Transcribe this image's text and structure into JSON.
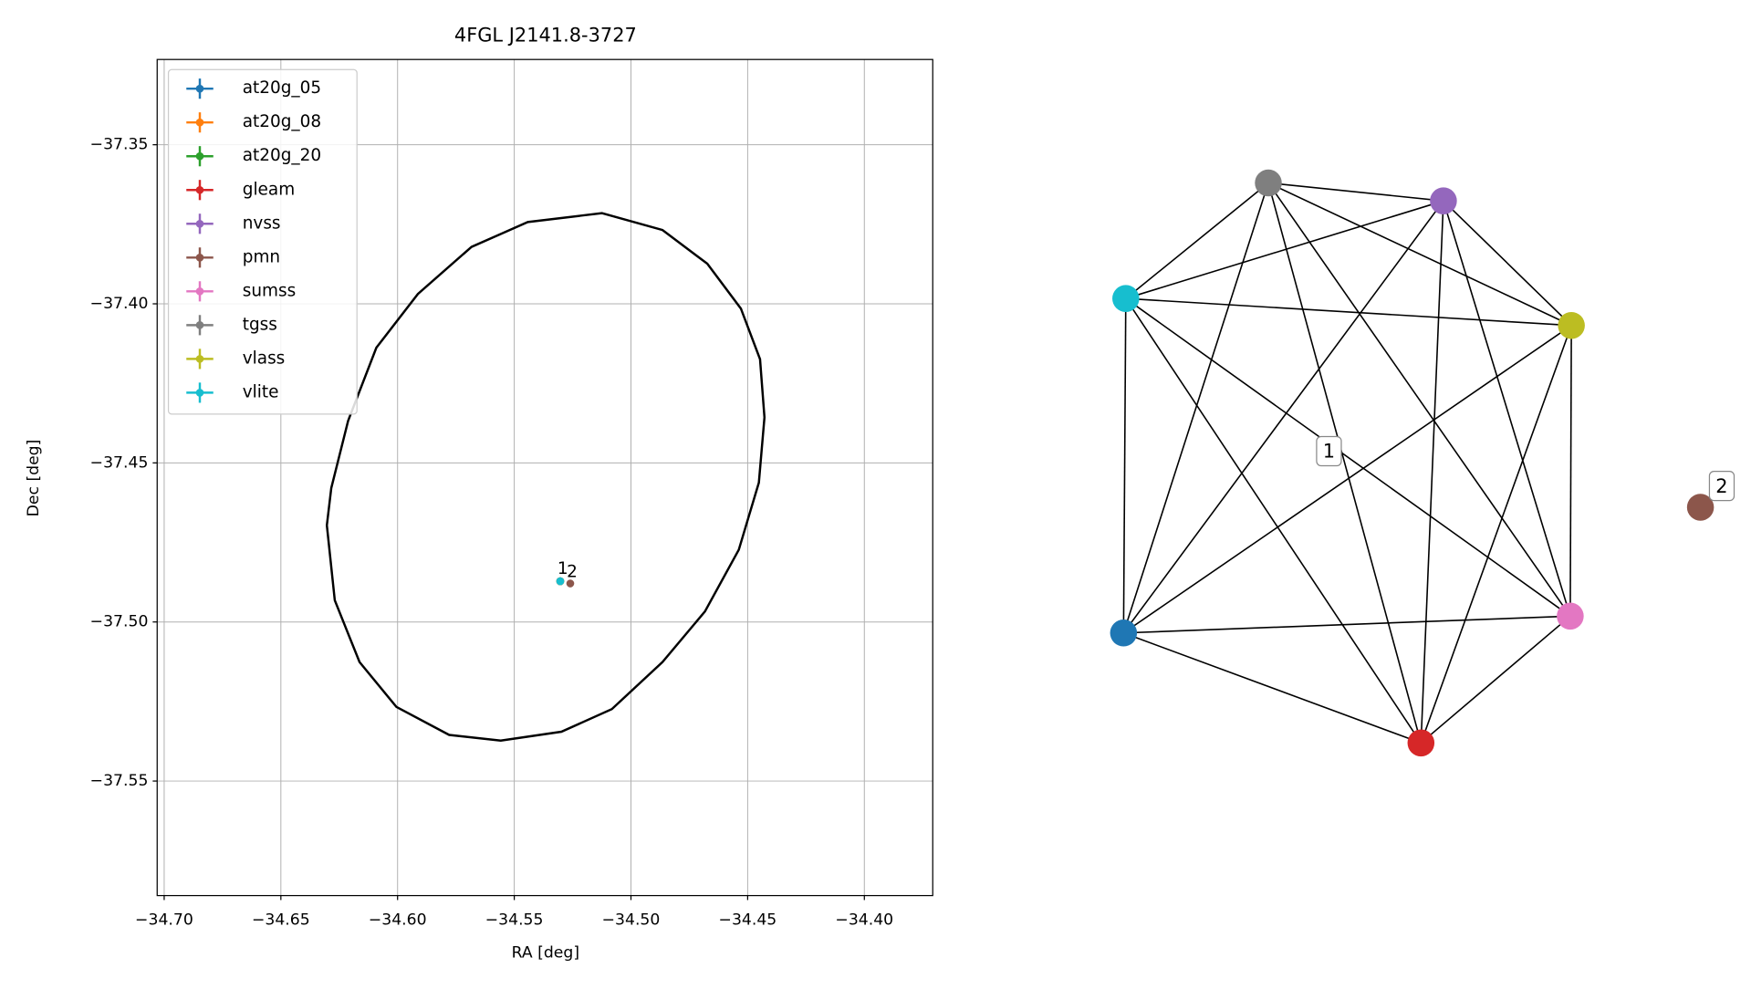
{
  "chart_data": {
    "type": "scatter",
    "title": "4FGL J2141.8-3727",
    "xlabel": "RA [deg]",
    "ylabel": "Dec [deg]",
    "xlim": [
      -34.703,
      -34.3707
    ],
    "ylim": [
      -37.586,
      -37.3232
    ],
    "grid": true,
    "legend": "upper left",
    "xticks": [
      {
        "value": -34.7,
        "label": "−34.70"
      },
      {
        "value": -34.65,
        "label": "−34.65"
      },
      {
        "value": -34.6,
        "label": "−34.60"
      },
      {
        "value": -34.55,
        "label": "−34.55"
      },
      {
        "value": -34.5,
        "label": "−34.50"
      },
      {
        "value": -34.45,
        "label": "−34.45"
      },
      {
        "value": -34.4,
        "label": "−34.40"
      }
    ],
    "yticks": [
      {
        "value": -37.35,
        "label": "−37.35"
      },
      {
        "value": -37.4,
        "label": "−37.40"
      },
      {
        "value": -37.45,
        "label": "−37.45"
      },
      {
        "value": -37.5,
        "label": "−37.50"
      },
      {
        "value": -37.55,
        "label": "−37.55"
      }
    ],
    "series": [
      {
        "name": "at20g_05",
        "color": "#1f77b4",
        "x": [
          -34.5303
        ],
        "y": [
          -37.4872
        ]
      },
      {
        "name": "at20g_08",
        "color": "#ff7f0e",
        "x": [
          -34.5303
        ],
        "y": [
          -37.4872
        ]
      },
      {
        "name": "at20g_20",
        "color": "#2ca02c",
        "x": [
          -34.5303
        ],
        "y": [
          -37.4872
        ]
      },
      {
        "name": "gleam",
        "color": "#d62728",
        "x": [
          -34.5303
        ],
        "y": [
          -37.4872
        ]
      },
      {
        "name": "nvss",
        "color": "#9467bd",
        "x": [
          -34.5303
        ],
        "y": [
          -37.4872
        ]
      },
      {
        "name": "pmn",
        "color": "#8c564b",
        "x": [
          -34.526
        ],
        "y": [
          -37.4879
        ]
      },
      {
        "name": "sumss",
        "color": "#e377c2",
        "x": [
          -34.5303
        ],
        "y": [
          -37.4872
        ]
      },
      {
        "name": "tgss",
        "color": "#7f7f7f",
        "x": [
          -34.5303
        ],
        "y": [
          -37.4872
        ]
      },
      {
        "name": "vlass",
        "color": "#bcbd22",
        "x": [
          -34.5303
        ],
        "y": [
          -37.4872
        ]
      },
      {
        "name": "vlite",
        "color": "#17becf",
        "x": [
          -34.5303
        ],
        "y": [
          -37.4872
        ]
      }
    ],
    "ellipse": {
      "color": "#000000",
      "x": [
        -34.5125,
        -34.4865,
        -34.4673,
        -34.4529,
        -34.4447,
        -34.4428,
        -34.4452,
        -34.4538,
        -34.4683,
        -34.4865,
        -34.5082,
        -34.5298,
        -34.5558,
        -34.5779,
        -34.6005,
        -34.6163,
        -34.6269,
        -34.6303,
        -34.6284,
        -34.6212,
        -34.6091,
        -34.5913,
        -34.5683,
        -34.5442
      ],
      "y": [
        -37.3715,
        -37.3768,
        -37.3874,
        -37.4015,
        -37.4174,
        -37.4357,
        -37.4562,
        -37.4773,
        -37.4967,
        -37.5126,
        -37.5274,
        -37.5345,
        -37.5373,
        -37.5355,
        -37.5267,
        -37.5126,
        -37.4932,
        -37.4696,
        -37.4579,
        -37.4368,
        -37.4138,
        -37.3969,
        -37.3821,
        -37.3743
      ]
    },
    "annotations": [
      {
        "text": "1",
        "x": -34.5292,
        "y": -37.4835
      },
      {
        "text": "2",
        "x": -34.5252,
        "y": -37.4845
      }
    ]
  },
  "graph": {
    "nodes": [
      {
        "color": "#7f7f7f"
      },
      {
        "color": "#9467bd"
      },
      {
        "color": "#17becf"
      },
      {
        "color": "#bcbd22"
      },
      {
        "color": "#1f77b4"
      },
      {
        "color": "#e377c2"
      },
      {
        "color": "#d62728"
      },
      {
        "color": "#8c564b"
      }
    ],
    "groups": [
      {
        "label": "1",
        "nodes": [
          0,
          1,
          2,
          3,
          4,
          5,
          6
        ]
      },
      {
        "label": "2",
        "nodes": [
          7
        ]
      }
    ]
  }
}
